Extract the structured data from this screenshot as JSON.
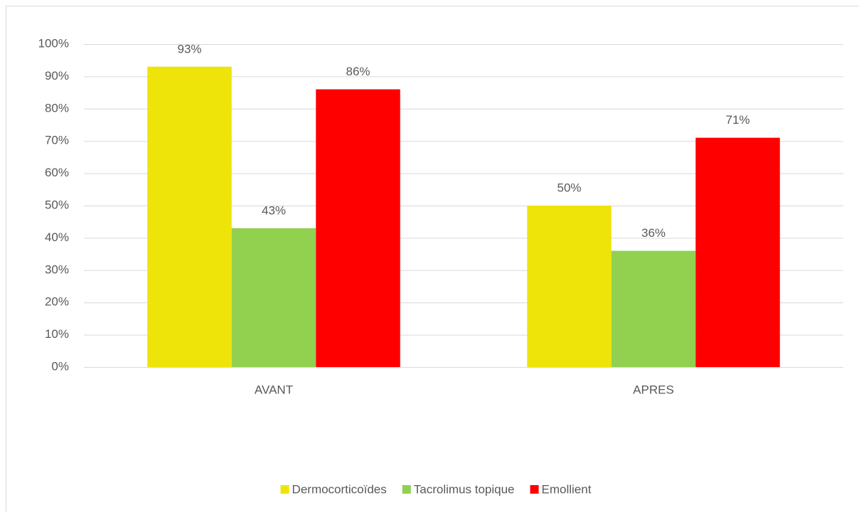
{
  "chart_data": {
    "type": "bar",
    "categories": [
      "AVANT",
      "APRES"
    ],
    "series": [
      {
        "name": "Dermocorticoïdes",
        "color": "#eee40a",
        "values": [
          93,
          50
        ],
        "value_labels": [
          "93%",
          "50%"
        ]
      },
      {
        "name": "Tacrolimus topique",
        "color": "#92d050",
        "values": [
          43,
          36
        ],
        "value_labels": [
          "43%",
          "36%"
        ]
      },
      {
        "name": "Emollient",
        "color": "#ff0000",
        "values": [
          86,
          71
        ],
        "value_labels": [
          "86%",
          "71%"
        ]
      }
    ],
    "ylim": [
      0,
      100
    ],
    "yticks": [
      {
        "value": 0,
        "label": "0%"
      },
      {
        "value": 10,
        "label": "10%"
      },
      {
        "value": 20,
        "label": "20%"
      },
      {
        "value": 30,
        "label": "30%"
      },
      {
        "value": 40,
        "label": "40%"
      },
      {
        "value": 50,
        "label": "50%"
      },
      {
        "value": 60,
        "label": "60%"
      },
      {
        "value": 70,
        "label": "70%"
      },
      {
        "value": 80,
        "label": "80%"
      },
      {
        "value": 90,
        "label": "90%"
      },
      {
        "value": 100,
        "label": "100%"
      }
    ],
    "grid": true,
    "legend": "bottom"
  }
}
